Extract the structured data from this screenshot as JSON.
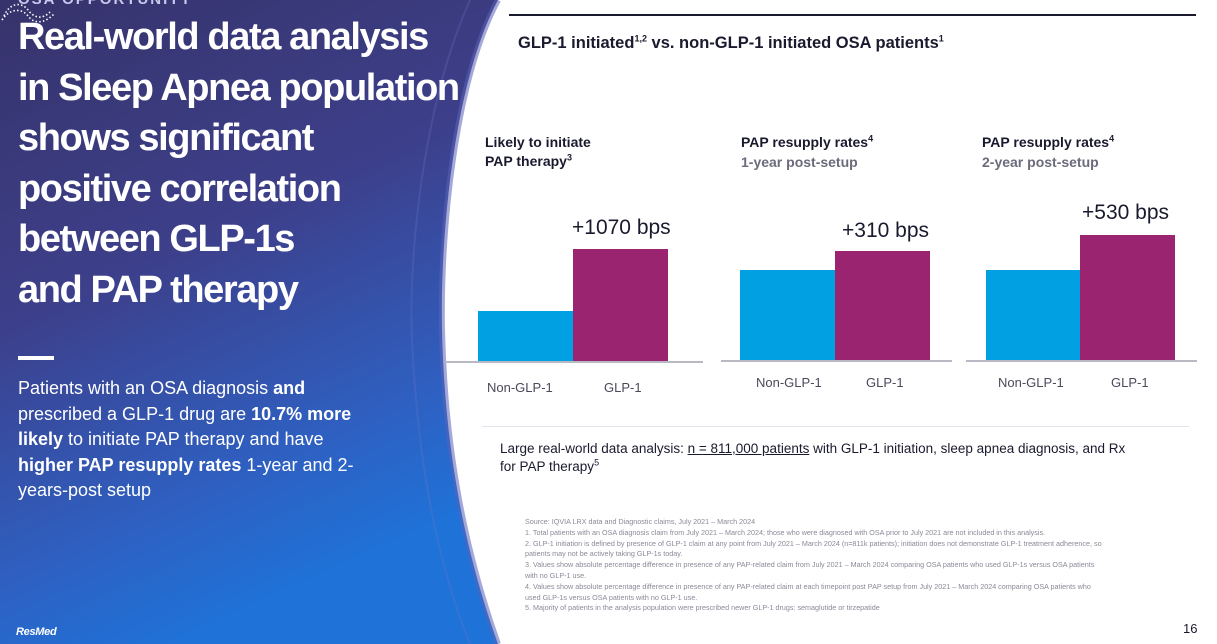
{
  "left": {
    "eyebrow": "OSA OPPORTUNITY",
    "headline_lines": [
      "Real-world data analysis",
      "in Sleep Apnea population",
      "shows significant",
      "positive correlation",
      "between GLP-1s",
      "and PAP therapy"
    ],
    "body": {
      "t1": "Patients with an OSA diagnosis ",
      "b1": "and",
      "t2": " prescribed a GLP-1 drug are ",
      "b2": "10.7% more likely",
      "t3": " to initiate PAP therapy and have ",
      "b3": "higher PAP resupply rates",
      "t4": " 1-year and 2-years-post setup"
    },
    "logo_text": "ResMed"
  },
  "chart_title": {
    "part1": "GLP-1 initiated",
    "sup1": "1,2",
    "part2": " vs. non-GLP-1 initiated OSA patients",
    "sup2": "1"
  },
  "chart_data": [
    {
      "type": "bar",
      "title": "Likely to initiate PAP therapy",
      "title_line1": "Likely to initiate",
      "title_line2": "PAP therapy",
      "title_sup": "3",
      "categories": [
        "Non-GLP-1",
        "GLP-1"
      ],
      "values": [
        31,
        70
      ],
      "annotation": "+1070 bps",
      "colors": [
        "#00a0e3",
        "#9b2470"
      ]
    },
    {
      "type": "bar",
      "title": "PAP resupply rates",
      "title_sup": "4",
      "subtitle": "1-year post-setup",
      "categories": [
        "Non-GLP-1",
        "GLP-1"
      ],
      "values": [
        56,
        68
      ],
      "annotation": "+310 bps",
      "colors": [
        "#00a0e3",
        "#9b2470"
      ]
    },
    {
      "type": "bar",
      "title": "PAP resupply rates",
      "title_sup": "4",
      "subtitle": "2-year post-setup",
      "categories": [
        "Non-GLP-1",
        "GLP-1"
      ],
      "values": [
        56,
        78
      ],
      "annotation": "+530 bps",
      "colors": [
        "#00a0e3",
        "#9b2470"
      ]
    }
  ],
  "analysis_note": {
    "prefix": "Large real-world data analysis: ",
    "underlined": "n = 811,000 patients",
    "suffix": " with GLP-1 initiation, sleep apnea diagnosis, and Rx for PAP therapy",
    "sup": "5"
  },
  "footnotes": [
    "Source: IQVIA LRX data and Diagnostic claims, July 2021 – March 2024",
    "1. Total patients with an OSA diagnosis claim from July 2021 – March 2024; those who were diagnosed with OSA prior to July 2021 are not included in this analysis.",
    "2. GLP-1 initiation is defined by presence of GLP-1 claim at any point from July 2021 – March 2024 (n=811k patients); initiation does not demonstrate GLP-1 treatment adherence, so patients may not be actively taking GLP-1s today.",
    "3. Values show absolute percentage difference in presence of any PAP-related claim from July 2021 – March 2024 comparing OSA patients who used GLP-1s versus OSA patients with no GLP-1 use.",
    "4. Values show absolute percentage difference in presence of any PAP-related claim at each timepoint post PAP setup from July 2021 – March 2024 comparing OSA patients who used GLP-1s versus OSA patients with no GLP-1 use.",
    "5. Majority of patients in the analysis population were prescribed newer GLP-1 drugs: semaglutide or tirzepatide"
  ],
  "page_number": "16",
  "colors": {
    "panel_top": "#3a3570",
    "panel_bottom": "#1f6bcf",
    "glp1": "#9b2470",
    "non_glp1": "#00a0e3"
  }
}
